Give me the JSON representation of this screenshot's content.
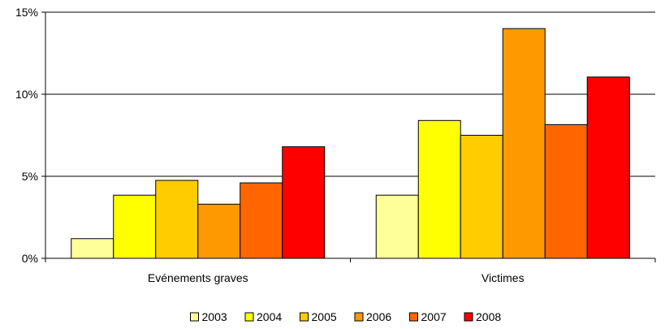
{
  "chart_data": {
    "type": "bar",
    "categories": [
      "Evénements graves",
      "Victimes"
    ],
    "series": [
      {
        "name": "2003",
        "values": [
          1.2,
          3.85
        ],
        "color": "#FFFF99"
      },
      {
        "name": "2004",
        "values": [
          3.85,
          8.4
        ],
        "color": "#FFFF00"
      },
      {
        "name": "2005",
        "values": [
          4.75,
          7.5
        ],
        "color": "#FFCC00"
      },
      {
        "name": "2006",
        "values": [
          3.3,
          14.0
        ],
        "color": "#FF9900"
      },
      {
        "name": "2007",
        "values": [
          4.6,
          8.15
        ],
        "color": "#FF6600"
      },
      {
        "name": "2008",
        "values": [
          6.8,
          11.05
        ],
        "color": "#FF0000"
      }
    ],
    "title": "",
    "xlabel": "",
    "ylabel": "",
    "ylim": [
      0,
      15
    ],
    "yticks": [
      0,
      5,
      10,
      15
    ],
    "ytick_labels": [
      "0%",
      "5%",
      "10%",
      "15%"
    ],
    "grid": true,
    "legend_position": "bottom"
  }
}
